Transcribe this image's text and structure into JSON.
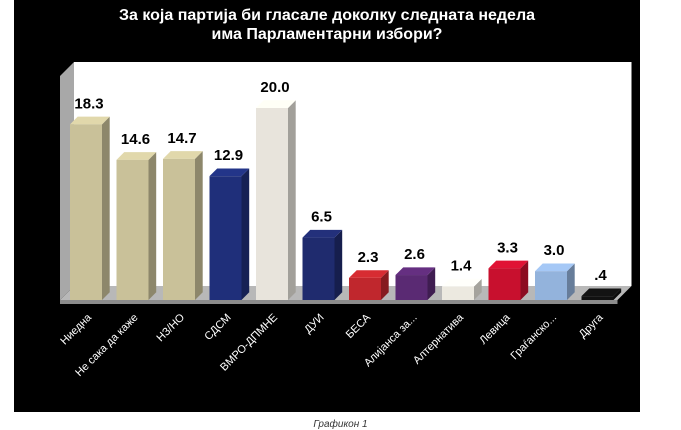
{
  "title_line1": "За која партија би гласале доколку следната недела",
  "title_line2": "има Парламентарни  избори?",
  "caption": "Графикон 1",
  "chart_data": {
    "type": "bar",
    "title": "За која партија би гласале доколку следната недела има Парламентарни  избори?",
    "categories": [
      "Ниедна",
      "Не сака да каже",
      "НЗ/НО",
      "СДСМ",
      "ВМРО-ДПМНЕ",
      "ДУИ",
      "БЕСА",
      "Алијанса за...",
      "Алтернатива",
      "Левица",
      "Граѓанско...",
      "Друга"
    ],
    "values": [
      18.3,
      14.6,
      14.7,
      12.9,
      20.0,
      6.5,
      2.3,
      2.6,
      1.4,
      3.3,
      3.0,
      0.4
    ],
    "value_labels": [
      "18.3",
      "14.6",
      "14.7",
      "12.9",
      "20.0",
      "6.5",
      "2.3",
      "2.6",
      "1.4",
      "3.3",
      "3.0",
      ".4"
    ],
    "bar_colors": [
      "#c9c199",
      "#c9c199",
      "#c9c199",
      "#1f2f7a",
      "#e8e4dc",
      "#1f2b6e",
      "#c0272d",
      "#5a2a73",
      "#ece9e0",
      "#c8102e",
      "#93b3dc",
      "#111111"
    ],
    "ylim": [
      0,
      22
    ],
    "grid": false,
    "legend": "none",
    "background": "#000000",
    "floor_color": "#b8b8b8",
    "wall_color": "#ffffff"
  }
}
